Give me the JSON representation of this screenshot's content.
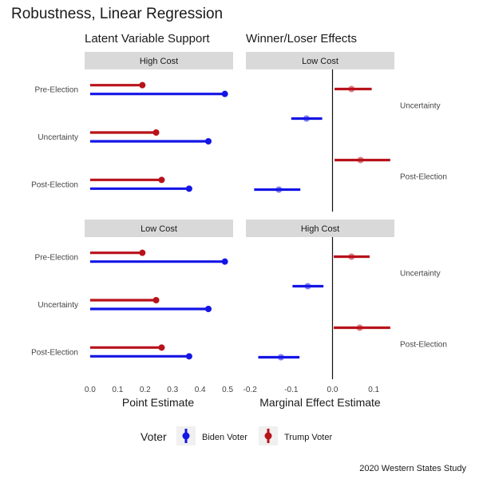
{
  "title": "Robustness, Linear Regression",
  "left_column_title": "Latent Variable Support",
  "right_column_title": "Winner/Loser Effects",
  "caption": "2020 Western States Study",
  "legend": {
    "title": "Voter",
    "items": [
      {
        "label": "Biden Voter",
        "color": "#1515e6"
      },
      {
        "label": "Trump Voter",
        "color": "#b8121b"
      }
    ]
  },
  "colors": {
    "biden": "#1515e6",
    "trump": "#b8121b",
    "strip": "#d9d9d9"
  },
  "chart_data": [
    {
      "type": "bar",
      "panel": "top-left",
      "strip": "High Cost",
      "categories": [
        "Pre-Election",
        "Uncertainty",
        "Post-Election"
      ],
      "series": [
        {
          "name": "Trump Voter",
          "values": [
            0.19,
            0.24,
            0.26
          ]
        },
        {
          "name": "Biden Voter",
          "values": [
            0.49,
            0.43,
            0.36
          ]
        }
      ],
      "xlim": [
        -0.02,
        0.52
      ],
      "xticks": [
        0.0,
        0.1,
        0.2,
        0.3,
        0.4,
        0.5
      ],
      "xlabel": "Point Estimate"
    },
    {
      "type": "scatter",
      "panel": "top-right",
      "strip": "Low Cost",
      "categories": [
        "Uncertainty",
        "Post-Election"
      ],
      "series": [
        {
          "name": "Trump Voter",
          "points": [
            {
              "group": "Uncertainty",
              "estimate": 0.046,
              "lower": 0.005,
              "upper": 0.095
            },
            {
              "group": "Post-Election",
              "estimate": 0.068,
              "lower": 0.005,
              "upper": 0.14
            }
          ]
        },
        {
          "name": "Biden Voter",
          "points": [
            {
              "group": "Uncertainty",
              "estimate": -0.063,
              "lower": -0.1,
              "upper": -0.025
            },
            {
              "group": "Post-Election",
              "estimate": -0.13,
              "lower": -0.19,
              "upper": -0.078
            }
          ]
        }
      ],
      "xlim": [
        -0.21,
        0.15
      ],
      "xticks": [
        -0.2,
        -0.1,
        0.0,
        0.1
      ],
      "xlabel": "Marginal Effect Estimate"
    },
    {
      "type": "bar",
      "panel": "bottom-left",
      "strip": "Low Cost",
      "categories": [
        "Pre-Election",
        "Uncertainty",
        "Post-Election"
      ],
      "series": [
        {
          "name": "Trump Voter",
          "values": [
            0.19,
            0.24,
            0.26
          ]
        },
        {
          "name": "Biden Voter",
          "values": [
            0.49,
            0.43,
            0.36
          ]
        }
      ],
      "xlim": [
        -0.02,
        0.52
      ],
      "xticks": [
        0.0,
        0.1,
        0.2,
        0.3,
        0.4,
        0.5
      ],
      "xlabel": "Point Estimate",
      "xtick_labels": [
        "0.0",
        "0.1",
        "0.2",
        "0.3",
        "0.4",
        "0.5"
      ]
    },
    {
      "type": "scatter",
      "panel": "bottom-right",
      "strip": "High Cost",
      "categories": [
        "Uncertainty",
        "Post-Election"
      ],
      "series": [
        {
          "name": "Trump Voter",
          "points": [
            {
              "group": "Uncertainty",
              "estimate": 0.046,
              "lower": 0.003,
              "upper": 0.09
            },
            {
              "group": "Post-Election",
              "estimate": 0.066,
              "lower": 0.003,
              "upper": 0.14
            }
          ]
        },
        {
          "name": "Biden Voter",
          "points": [
            {
              "group": "Uncertainty",
              "estimate": -0.06,
              "lower": -0.097,
              "upper": -0.022
            },
            {
              "group": "Post-Election",
              "estimate": -0.125,
              "lower": -0.18,
              "upper": -0.08
            }
          ]
        }
      ],
      "xlim": [
        -0.21,
        0.15
      ],
      "xticks": [
        -0.2,
        -0.1,
        0.0,
        0.1
      ],
      "xlabel": "Marginal Effect Estimate",
      "xtick_labels": [
        "-0.2",
        "-0.1",
        "0.0",
        "0.1"
      ]
    }
  ]
}
